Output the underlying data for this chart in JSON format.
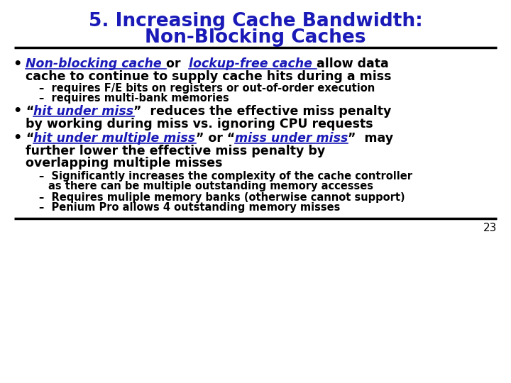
{
  "title_line1": "5. Increasing Cache Bandwidth:",
  "title_line2": "Non-Blocking Caches",
  "title_color": "#1a1ab8",
  "bg_color": "#ffffff",
  "text_color": "#000000",
  "blue_color": "#1a1ab8",
  "page_number": "23"
}
